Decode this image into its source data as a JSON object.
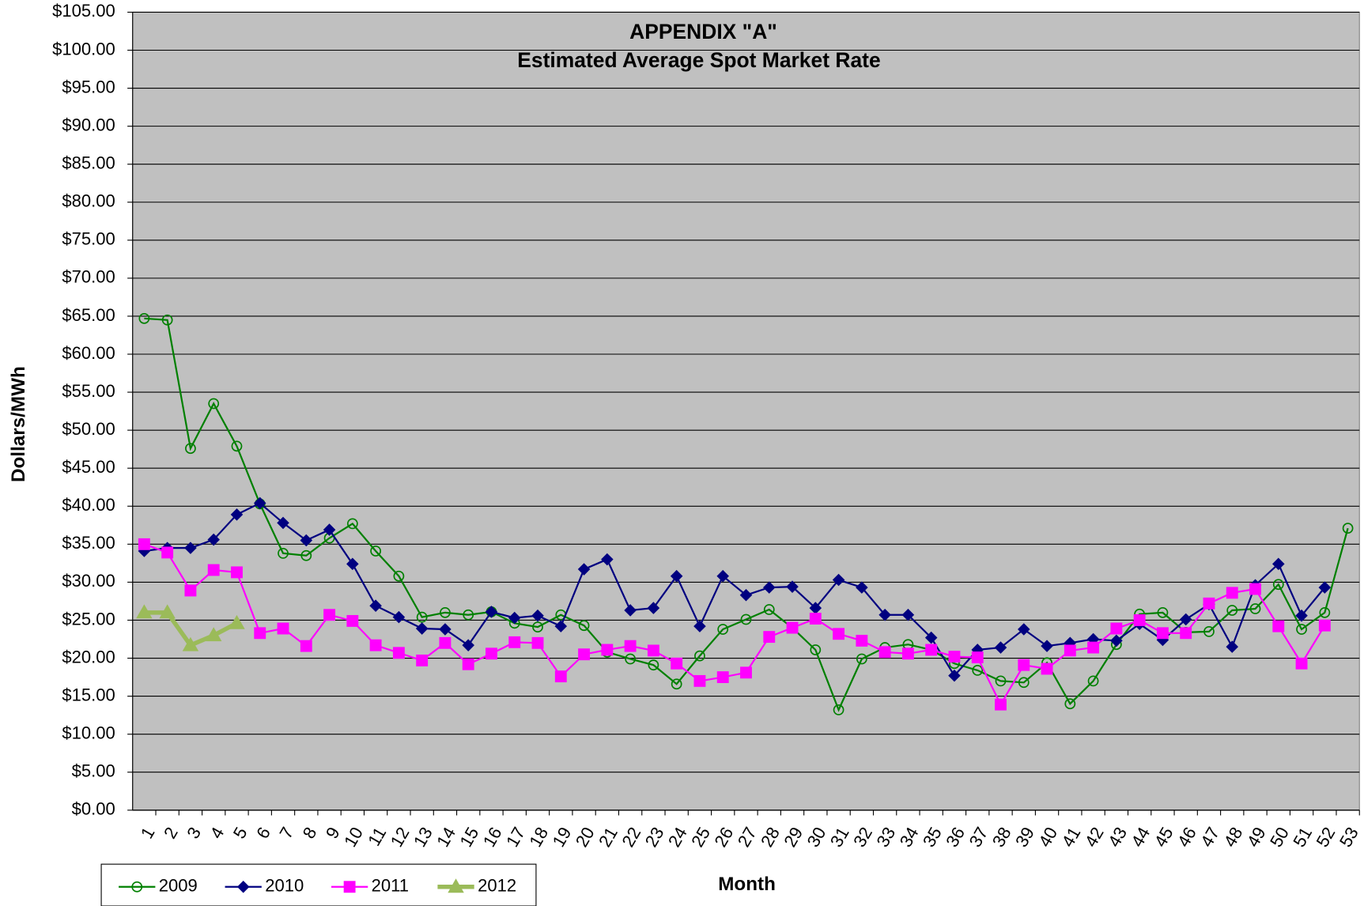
{
  "chart_data": {
    "type": "line",
    "title": "APPENDIX \"A\"",
    "subtitle": "Estimated Average Spot Market Rate",
    "x_label": "Month",
    "y_label": "Dollars/MWh",
    "categories": [
      "1",
      "2",
      "3",
      "4",
      "5",
      "6",
      "7",
      "8",
      "9",
      "10",
      "11",
      "12",
      "13",
      "14",
      "15",
      "16",
      "17",
      "18",
      "19",
      "20",
      "21",
      "22",
      "23",
      "24",
      "25",
      "26",
      "27",
      "28",
      "29",
      "30",
      "31",
      "32",
      "33",
      "34",
      "35",
      "36",
      "37",
      "38",
      "39",
      "40",
      "41",
      "42",
      "43",
      "44",
      "45",
      "46",
      "47",
      "48",
      "49",
      "50",
      "51",
      "52",
      "53"
    ],
    "series": [
      {
        "name": "2009",
        "color": "#008000",
        "marker": "open-circle",
        "values": [
          64.7,
          64.5,
          47.6,
          53.5,
          47.9,
          40.3,
          33.8,
          33.5,
          35.8,
          37.7,
          34.1,
          30.8,
          25.4,
          26.0,
          25.7,
          26.1,
          24.6,
          24.1,
          25.7,
          24.3,
          20.8,
          19.9,
          19.1,
          16.6,
          20.3,
          23.8,
          25.1,
          26.4,
          24.0,
          21.1,
          13.2,
          19.9,
          21.4,
          21.8,
          21.1,
          19.3,
          18.4,
          17.0,
          16.8,
          19.4,
          14.0,
          17.0,
          21.8,
          25.8,
          26.0,
          23.4,
          23.5,
          26.3,
          26.5,
          29.7,
          23.8,
          26.0,
          37.1
        ]
      },
      {
        "name": "2010",
        "color": "#000080",
        "marker": "diamond",
        "values": [
          34.1,
          34.5,
          34.5,
          35.6,
          38.9,
          40.4,
          37.8,
          35.5,
          36.9,
          32.4,
          26.9,
          25.4,
          23.9,
          23.8,
          21.7,
          26.1,
          25.3,
          25.6,
          24.2,
          31.7,
          33.0,
          26.3,
          26.6,
          30.8,
          24.2,
          30.8,
          28.3,
          29.3,
          29.4,
          26.6,
          30.3,
          29.3,
          25.7,
          25.7,
          22.7,
          17.7,
          21.1,
          21.4,
          23.8,
          21.6,
          22.0,
          22.5,
          22.3,
          24.5,
          22.4,
          25.1,
          27.1,
          21.5,
          29.6,
          32.4,
          25.6,
          29.3,
          null
        ]
      },
      {
        "name": "2011",
        "color": "#ff00ff",
        "marker": "square",
        "values": [
          35.0,
          33.9,
          28.9,
          31.6,
          31.3,
          23.3,
          23.9,
          21.6,
          25.7,
          24.9,
          21.7,
          20.7,
          19.7,
          22.0,
          19.2,
          20.6,
          22.1,
          22.0,
          17.6,
          20.5,
          21.1,
          21.6,
          21.0,
          19.3,
          17.0,
          17.5,
          18.1,
          22.8,
          24.0,
          25.2,
          23.2,
          22.3,
          20.8,
          20.6,
          21.1,
          20.2,
          20.1,
          13.9,
          19.1,
          18.6,
          21.0,
          21.4,
          23.9,
          25.0,
          23.3,
          23.3,
          27.2,
          28.6,
          29.1,
          24.2,
          19.3,
          24.3,
          null
        ]
      },
      {
        "name": "2012",
        "color": "#9bbb59",
        "marker": "triangle",
        "values": [
          26.0,
          26.0,
          21.7,
          23.0,
          24.6,
          null,
          null,
          null,
          null,
          null,
          null,
          null,
          null,
          null,
          null,
          null,
          null,
          null,
          null,
          null,
          null,
          null,
          null,
          null,
          null,
          null,
          null,
          null,
          null,
          null,
          null,
          null,
          null,
          null,
          null,
          null,
          null,
          null,
          null,
          null,
          null,
          null,
          null,
          null,
          null,
          null,
          null,
          null,
          null,
          null,
          null,
          null,
          null
        ]
      }
    ],
    "ylim": [
      0,
      105
    ],
    "yticks": [
      {
        "value": 0,
        "label": "$0.00"
      },
      {
        "value": 5,
        "label": "$5.00"
      },
      {
        "value": 10,
        "label": "$10.00"
      },
      {
        "value": 15,
        "label": "$15.00"
      },
      {
        "value": 20,
        "label": "$20.00"
      },
      {
        "value": 25,
        "label": "$25.00"
      },
      {
        "value": 30,
        "label": "$30.00"
      },
      {
        "value": 35,
        "label": "$35.00"
      },
      {
        "value": 40,
        "label": "$40.00"
      },
      {
        "value": 45,
        "label": "$45.00"
      },
      {
        "value": 50,
        "label": "$50.00"
      },
      {
        "value": 55,
        "label": "$55.00"
      },
      {
        "value": 60,
        "label": "$60.00"
      },
      {
        "value": 65,
        "label": "$65.00"
      },
      {
        "value": 70,
        "label": "$70.00"
      },
      {
        "value": 75,
        "label": "$75.00"
      },
      {
        "value": 80,
        "label": "$80.00"
      },
      {
        "value": 85,
        "label": "$85.00"
      },
      {
        "value": 90,
        "label": "$90.00"
      },
      {
        "value": 95,
        "label": "$95.00"
      },
      {
        "value": 100,
        "label": "$100.00"
      },
      {
        "value": 105,
        "label": "$105.00"
      }
    ],
    "grid": true,
    "plot_background": "#c0c0c0",
    "legend": "bottom-left"
  }
}
